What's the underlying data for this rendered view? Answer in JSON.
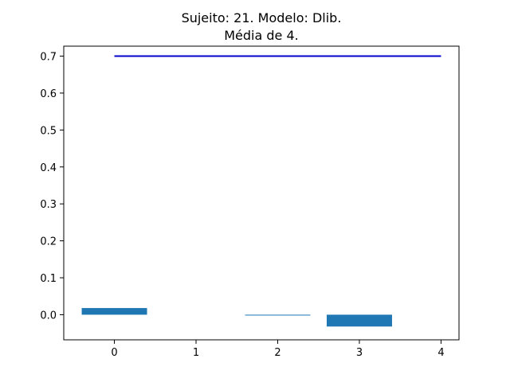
{
  "chart_data": {
    "type": "bar",
    "title_line1": "Sujeito: 21. Modelo: Dlib.",
    "title_line2": "Média de 4.",
    "xlabel": "",
    "ylabel": "",
    "x": [
      0,
      1,
      2,
      3
    ],
    "values": [
      0.018,
      0.0,
      -0.002,
      -0.032
    ],
    "xlim": [
      -0.62,
      4.22
    ],
    "ylim": [
      -0.068,
      0.727
    ],
    "xticks": [
      0,
      1,
      2,
      3,
      4
    ],
    "xtick_labels": [
      "0",
      "1",
      "2",
      "3",
      "4"
    ],
    "yticks": [
      0.0,
      0.1,
      0.2,
      0.3,
      0.4,
      0.5,
      0.6,
      0.7
    ],
    "ytick_labels": [
      "0.0",
      "0.1",
      "0.2",
      "0.3",
      "0.4",
      "0.5",
      "0.6",
      "0.7"
    ],
    "reference_line": {
      "y": 0.7,
      "x_start": 0,
      "x_end": 4
    },
    "grid": false,
    "bar_color": "#1f77b4",
    "line_color": "#0000cc"
  }
}
